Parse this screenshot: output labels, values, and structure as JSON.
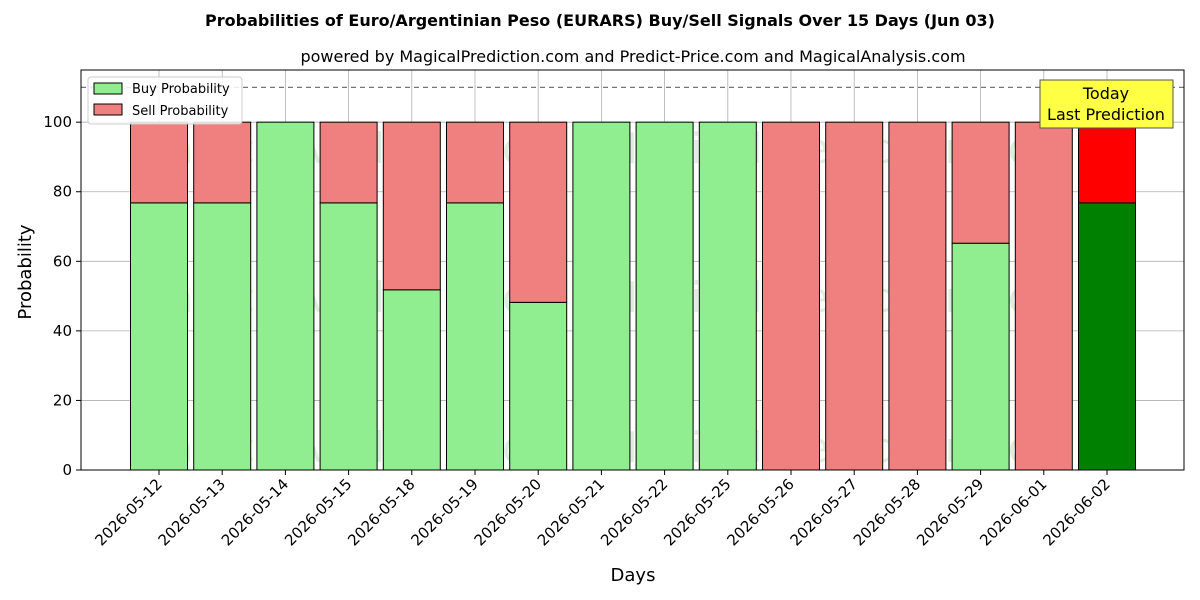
{
  "chart_data": {
    "type": "bar",
    "title": "Probabilities of Euro/Argentinian Peso (EURARS) Buy/Sell Signals Over 15 Days (Jun 03)",
    "subtitle": "powered by MagicalPrediction.com and Predict-Price.com and MagicalAnalysis.com",
    "xlabel": "Days",
    "ylabel": "Probability",
    "ylim": [
      0,
      115
    ],
    "yticks": [
      0,
      20,
      40,
      60,
      80,
      100
    ],
    "reference_line": 110,
    "grid": true,
    "stacked": true,
    "legend_position": "top-left",
    "categories": [
      "2026-05-12",
      "2026-05-13",
      "2026-05-14",
      "2026-05-15",
      "2026-05-18",
      "2026-05-19",
      "2026-05-20",
      "2026-05-21",
      "2026-05-22",
      "2026-05-25",
      "2026-05-26",
      "2026-05-27",
      "2026-05-28",
      "2026-05-29",
      "2026-06-01",
      "2026-06-02"
    ],
    "series": [
      {
        "name": "Buy Probability",
        "color": "#90ee90",
        "values": [
          76.8,
          76.8,
          100,
          76.8,
          51.8,
          76.8,
          48.2,
          100,
          100,
          100,
          0,
          0,
          0,
          65.2,
          0,
          76.8
        ]
      },
      {
        "name": "Sell Probability",
        "color": "#f08080",
        "values": [
          23.2,
          23.2,
          0,
          23.2,
          48.2,
          23.2,
          51.8,
          0,
          0,
          0,
          100,
          100,
          100,
          34.8,
          100,
          23.2
        ]
      }
    ],
    "highlight": {
      "index": 15,
      "buy_color": "#008000",
      "sell_color": "#ff0000"
    },
    "annotation": {
      "lines": [
        "Today",
        "Last Prediction"
      ],
      "background": "#ffff44"
    },
    "watermarks": [
      "MagicalAnalysis.com",
      "MagicalPrediction.com"
    ]
  }
}
